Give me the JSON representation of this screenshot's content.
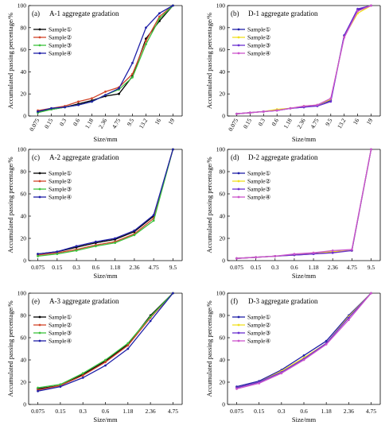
{
  "chart_data": [
    {
      "id": "a",
      "type": "line",
      "panel_label": "(a)",
      "title": "A-1 aggregate gradation",
      "xlabel": "Size/mm",
      "ylabel": "Accumulated passing percentage/%",
      "categories": [
        "0.075",
        "0.15",
        "0.3",
        "0.6",
        "1.18",
        "2.36",
        "4.75",
        "9.5",
        "13.2",
        "16",
        "19"
      ],
      "ylim": [
        0,
        100
      ],
      "yticks": [
        0,
        20,
        40,
        60,
        80,
        100
      ],
      "legend_position": "top-left",
      "series": [
        {
          "name": "Sample①",
          "color": "#000000",
          "values": [
            4,
            6,
            8,
            11,
            14,
            18,
            20,
            36,
            70,
            86,
            100
          ]
        },
        {
          "name": "Sample②",
          "color": "#d2452a",
          "values": [
            5,
            7,
            9,
            13,
            16,
            22,
            26,
            38,
            68,
            90,
            100
          ]
        },
        {
          "name": "Sample③",
          "color": "#3cc23c",
          "values": [
            3,
            6,
            8,
            10,
            13,
            19,
            24,
            35,
            65,
            88,
            100
          ]
        },
        {
          "name": "Sample④",
          "color": "#1f1fa8",
          "values": [
            4,
            7,
            8,
            10,
            13,
            19,
            25,
            48,
            80,
            93,
            100
          ]
        }
      ]
    },
    {
      "id": "b",
      "type": "line",
      "panel_label": "(b)",
      "title": "D-1 aggregate gradation",
      "xlabel": "Size/mm",
      "ylabel": "Accumulated passing percentage/%",
      "categories": [
        "0.075",
        "0.15",
        "0.3",
        "0.6",
        "1.18",
        "2.36",
        "4.75",
        "9.5",
        "13.2",
        "16",
        "19"
      ],
      "ylim": [
        0,
        100
      ],
      "yticks": [
        0,
        20,
        40,
        60,
        80,
        100
      ],
      "legend_position": "top-left",
      "series": [
        {
          "name": "Sample①",
          "color": "#1f1fa8",
          "values": [
            2,
            3,
            4,
            5,
            7,
            8,
            10,
            14,
            73,
            96,
            100
          ]
        },
        {
          "name": "Sample②",
          "color": "#f0e020",
          "values": [
            2,
            3,
            4,
            6,
            7,
            9,
            10,
            15,
            72,
            93,
            100
          ]
        },
        {
          "name": "Sample③",
          "color": "#6a2fd0",
          "values": [
            2,
            3,
            4,
            5,
            7,
            8,
            9,
            13,
            73,
            97,
            100
          ]
        },
        {
          "name": "Sample④",
          "color": "#cc55cc",
          "values": [
            2,
            3,
            4,
            5,
            7,
            9,
            10,
            16,
            71,
            95,
            100
          ]
        }
      ]
    },
    {
      "id": "c",
      "type": "line",
      "panel_label": "(c)",
      "title": "A-2 aggregate gradation",
      "xlabel": "Size/mm",
      "ylabel": "Accumulated passing percentage/%",
      "categories": [
        "0.075",
        "0.15",
        "0.3",
        "0.6",
        "1.18",
        "2.36",
        "4.75",
        "9.5"
      ],
      "ylim": [
        0,
        100
      ],
      "yticks": [
        0,
        20,
        40,
        60,
        80,
        100
      ],
      "legend_position": "top-left",
      "series": [
        {
          "name": "Sample①",
          "color": "#000000",
          "values": [
            6,
            8,
            12,
            16,
            19,
            26,
            40,
            100
          ]
        },
        {
          "name": "Sample②",
          "color": "#d2452a",
          "values": [
            5,
            7,
            10,
            14,
            17,
            24,
            38,
            100
          ]
        },
        {
          "name": "Sample③",
          "color": "#3cc23c",
          "values": [
            4,
            6,
            9,
            13,
            16,
            23,
            36,
            100
          ]
        },
        {
          "name": "Sample④",
          "color": "#1f1fa8",
          "values": [
            6,
            8,
            13,
            17,
            20,
            27,
            41,
            100
          ]
        }
      ]
    },
    {
      "id": "d",
      "type": "line",
      "panel_label": "(d)",
      "title": "D-2 aggregate gradation",
      "xlabel": "Size/mm",
      "ylabel": "Accumulated passing percentage/%",
      "categories": [
        "0.075",
        "0.15",
        "0.3",
        "0.6",
        "1.18",
        "2.36",
        "4.75",
        "9.5"
      ],
      "ylim": [
        0,
        100
      ],
      "yticks": [
        0,
        20,
        40,
        60,
        80,
        100
      ],
      "legend_position": "top-left",
      "series": [
        {
          "name": "Sample①",
          "color": "#1f1fa8",
          "values": [
            2,
            3,
            4,
            5,
            6,
            8,
            9,
            100
          ]
        },
        {
          "name": "Sample②",
          "color": "#f0e020",
          "values": [
            2,
            3,
            4,
            5,
            7,
            8,
            9,
            100
          ]
        },
        {
          "name": "Sample③",
          "color": "#6a2fd0",
          "values": [
            2,
            3,
            4,
            5,
            6,
            7,
            9,
            100
          ]
        },
        {
          "name": "Sample④",
          "color": "#cc55cc",
          "values": [
            2,
            3,
            4,
            6,
            7,
            9,
            10,
            100
          ]
        }
      ]
    },
    {
      "id": "e",
      "type": "line",
      "panel_label": "(e)",
      "title": "A-3 aggregate gradation",
      "xlabel": "Size/mm",
      "ylabel": "Accumulated passing percentage/%",
      "categories": [
        "0.075",
        "0.15",
        "0.3",
        "0.6",
        "1.18",
        "2.36",
        "4.75"
      ],
      "ylim": [
        0,
        100
      ],
      "yticks": [
        0,
        20,
        40,
        60,
        80,
        100
      ],
      "legend_position": "top-left",
      "series": [
        {
          "name": "Sample①",
          "color": "#000000",
          "values": [
            14,
            17,
            27,
            39,
            54,
            80,
            100
          ]
        },
        {
          "name": "Sample②",
          "color": "#d2452a",
          "values": [
            13,
            17,
            26,
            38,
            53,
            78,
            100
          ]
        },
        {
          "name": "Sample③",
          "color": "#3cc23c",
          "values": [
            15,
            18,
            28,
            40,
            55,
            79,
            100
          ]
        },
        {
          "name": "Sample④",
          "color": "#1f1fa8",
          "values": [
            12,
            16,
            24,
            35,
            50,
            75,
            100
          ]
        }
      ]
    },
    {
      "id": "f",
      "type": "line",
      "panel_label": "(f)",
      "title": "D-3 aggregate gradation",
      "xlabel": "Size/mm",
      "ylabel": "Accumulated passing percentage/%",
      "categories": [
        "0.075",
        "0.15",
        "0.3",
        "0.6",
        "1.18",
        "2.36",
        "4.75"
      ],
      "ylim": [
        0,
        100
      ],
      "yticks": [
        0,
        20,
        40,
        60,
        80,
        100
      ],
      "legend_position": "top-left",
      "series": [
        {
          "name": "Sample①",
          "color": "#1f1fa8",
          "values": [
            16,
            21,
            31,
            44,
            57,
            80,
            100
          ]
        },
        {
          "name": "Sample②",
          "color": "#f0e020",
          "values": [
            15,
            20,
            30,
            42,
            55,
            79,
            100
          ]
        },
        {
          "name": "Sample③",
          "color": "#6a2fd0",
          "values": [
            15,
            20,
            29,
            41,
            55,
            78,
            100
          ]
        },
        {
          "name": "Sample④",
          "color": "#cc55cc",
          "values": [
            14,
            19,
            28,
            40,
            54,
            76,
            100
          ]
        }
      ]
    }
  ]
}
